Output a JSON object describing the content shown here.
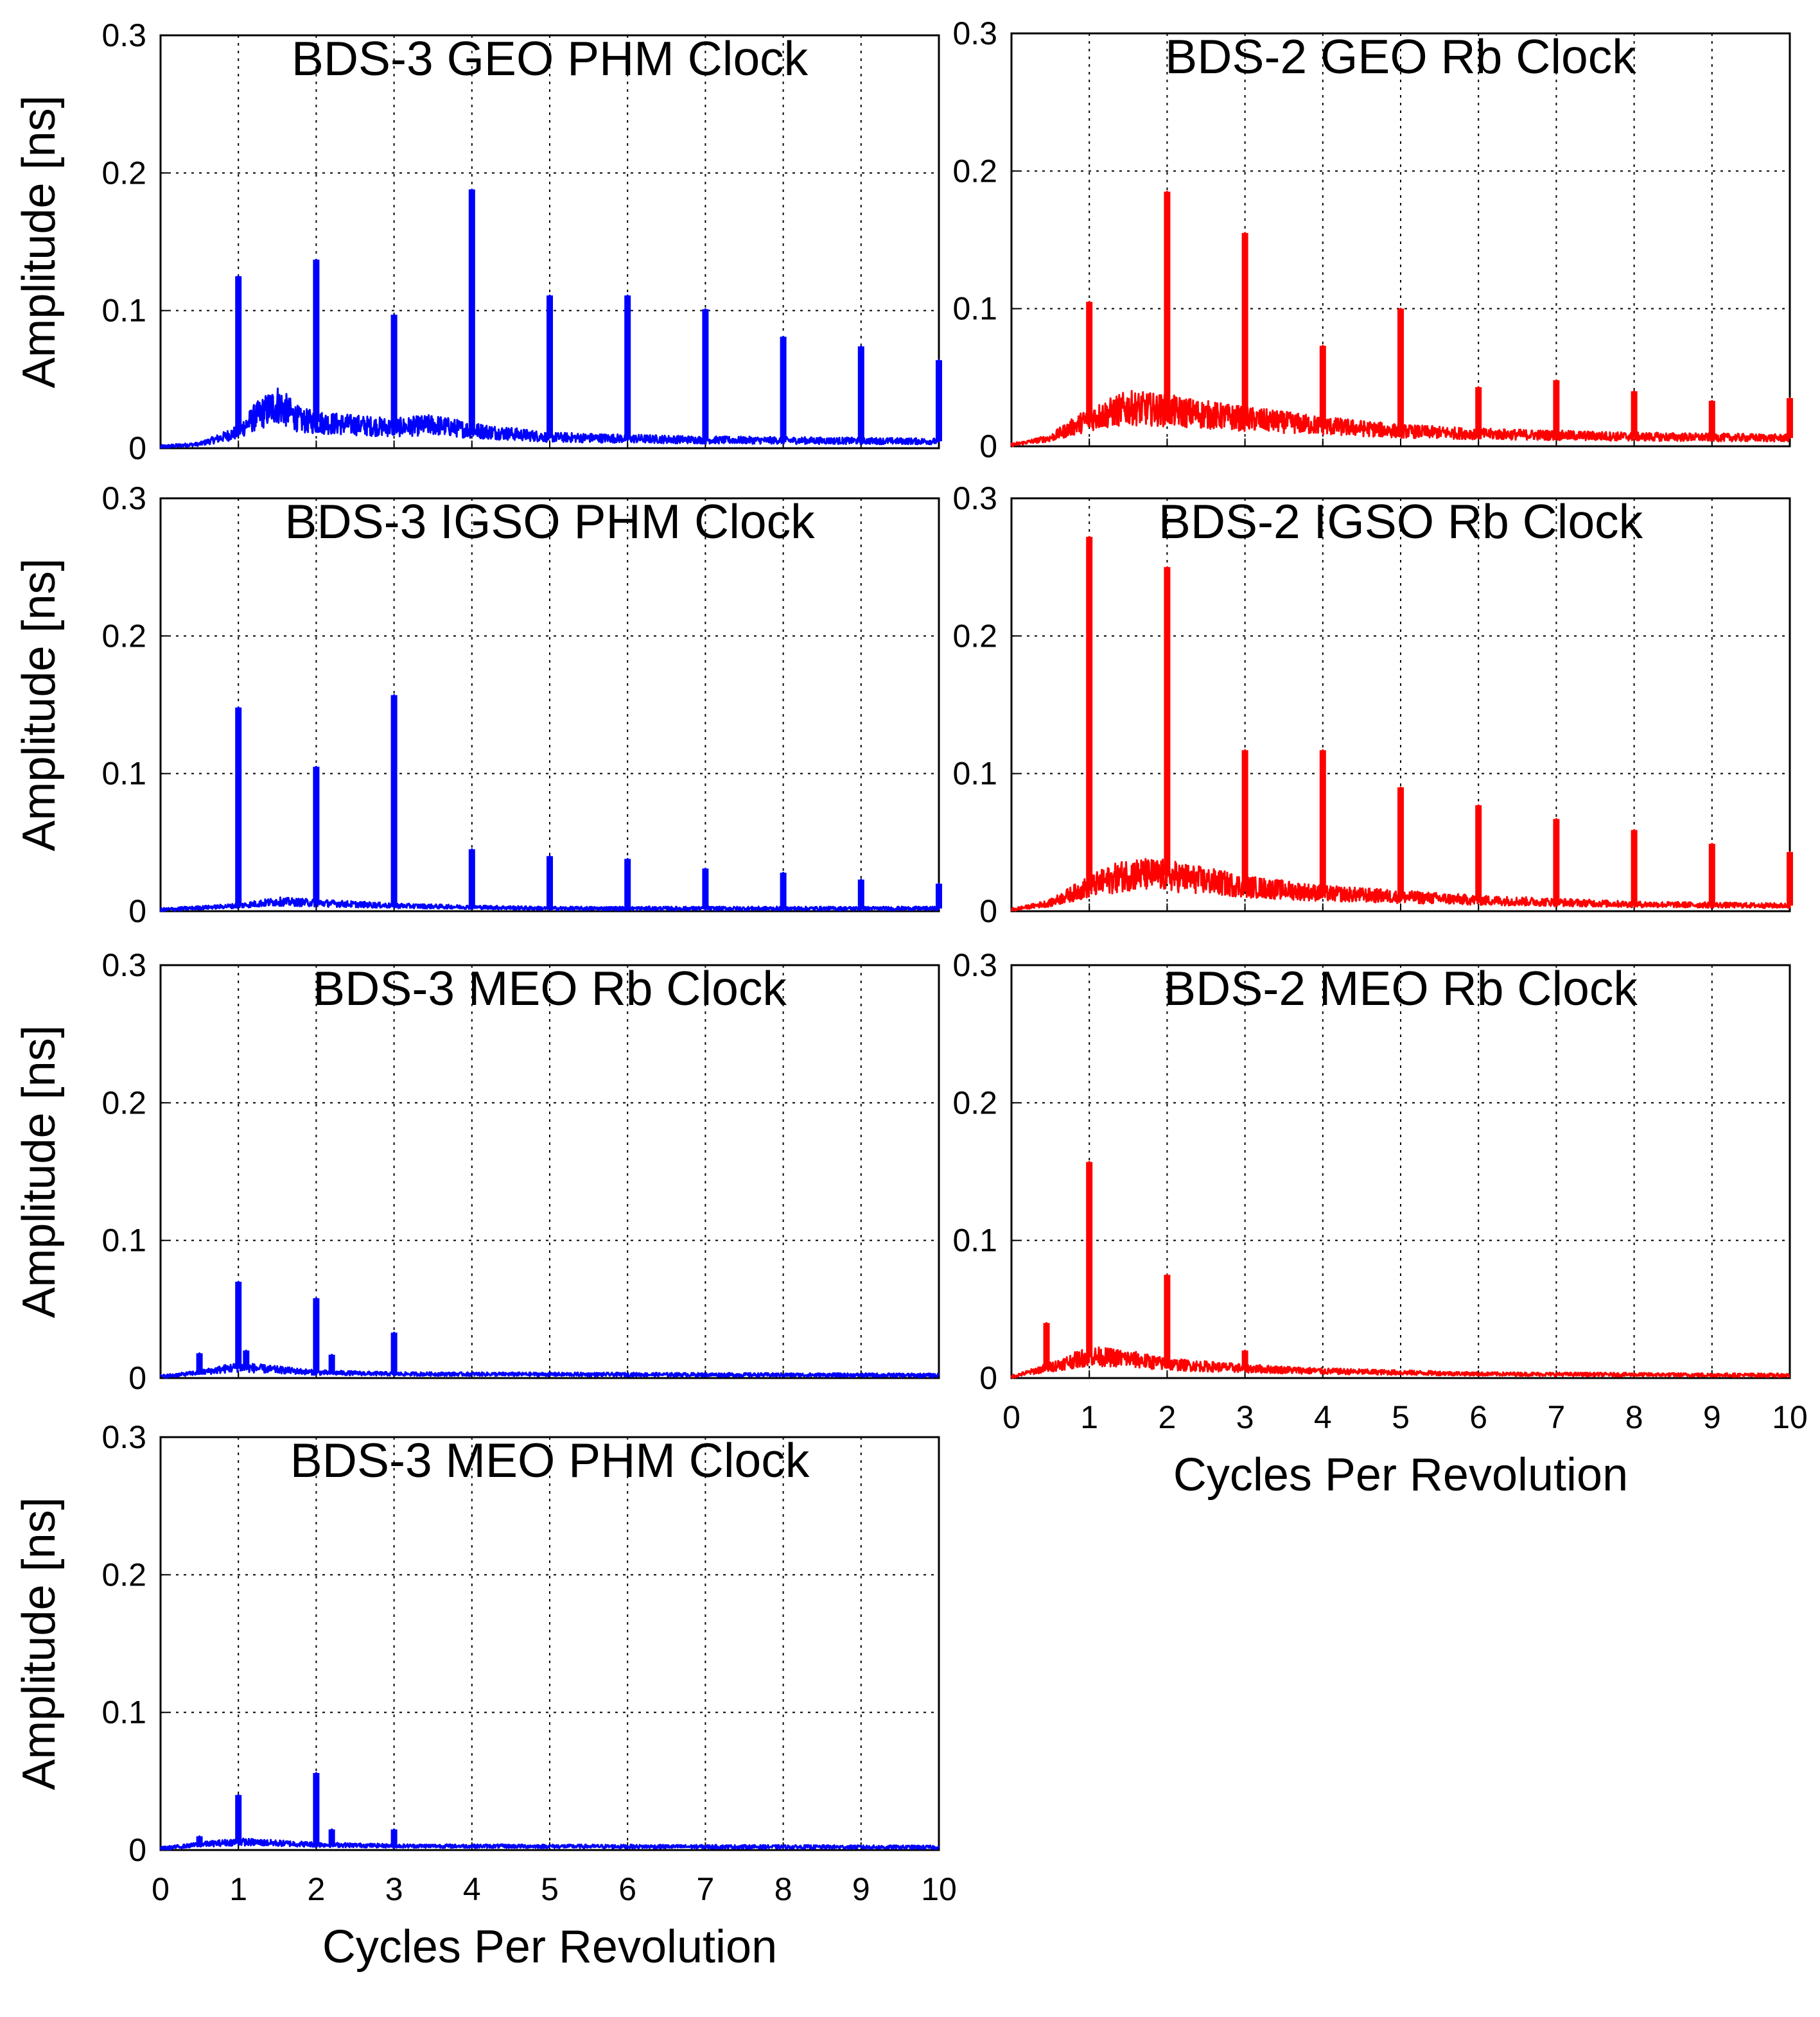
{
  "figure": {
    "x_tick_labels": [
      "0",
      "1",
      "2",
      "3",
      "4",
      "5",
      "6",
      "7",
      "8",
      "9",
      "10"
    ],
    "y_tick_labels": [
      "0",
      "0.1",
      "0.2",
      "0.3"
    ],
    "x_axis_label": "Cycles Per Revolution",
    "y_axis_label": "Amplitude [ns]"
  },
  "chart_data": [
    {
      "type": "line",
      "title": "BDS-3 GEO PHM Clock",
      "xlabel": "Cycles Per Revolution",
      "ylabel": "Amplitude [ns]",
      "xlim": [
        0,
        10
      ],
      "ylim": [
        0,
        0.3
      ],
      "color": "#0000ff",
      "show_xlabel": false,
      "grid": true,
      "peaks": [
        {
          "x": 1,
          "y": 0.125
        },
        {
          "x": 2,
          "y": 0.137
        },
        {
          "x": 3,
          "y": 0.097
        },
        {
          "x": 4,
          "y": 0.188
        },
        {
          "x": 5,
          "y": 0.111
        },
        {
          "x": 6,
          "y": 0.111
        },
        {
          "x": 7,
          "y": 0.101
        },
        {
          "x": 8,
          "y": 0.081
        },
        {
          "x": 9,
          "y": 0.074
        },
        {
          "x": 10,
          "y": 0.064
        }
      ],
      "baseline": [
        {
          "x": 0,
          "y": 0.001
        },
        {
          "x": 0.5,
          "y": 0.003
        },
        {
          "x": 0.8,
          "y": 0.008
        },
        {
          "x": 1.0,
          "y": 0.012
        },
        {
          "x": 1.2,
          "y": 0.022
        },
        {
          "x": 1.5,
          "y": 0.032
        },
        {
          "x": 1.8,
          "y": 0.02
        },
        {
          "x": 2.2,
          "y": 0.018
        },
        {
          "x": 3.0,
          "y": 0.015
        },
        {
          "x": 3.5,
          "y": 0.017
        },
        {
          "x": 4.0,
          "y": 0.013
        },
        {
          "x": 5.0,
          "y": 0.008
        },
        {
          "x": 7.0,
          "y": 0.006
        },
        {
          "x": 10.0,
          "y": 0.005
        }
      ]
    },
    {
      "type": "line",
      "title": "BDS-2 GEO Rb Clock",
      "xlabel": "Cycles Per Revolution",
      "ylabel": "",
      "xlim": [
        0,
        10
      ],
      "ylim": [
        0,
        0.3
      ],
      "color": "#ff0000",
      "show_xlabel": false,
      "grid": true,
      "peaks": [
        {
          "x": 1,
          "y": 0.105
        },
        {
          "x": 2,
          "y": 0.185
        },
        {
          "x": 3,
          "y": 0.155
        },
        {
          "x": 4,
          "y": 0.073
        },
        {
          "x": 5,
          "y": 0.1
        },
        {
          "x": 6,
          "y": 0.043
        },
        {
          "x": 7,
          "y": 0.048
        },
        {
          "x": 8,
          "y": 0.04
        },
        {
          "x": 9,
          "y": 0.033
        },
        {
          "x": 10,
          "y": 0.035
        }
      ],
      "baseline": [
        {
          "x": 0,
          "y": 0.001
        },
        {
          "x": 0.5,
          "y": 0.006
        },
        {
          "x": 1.0,
          "y": 0.02
        },
        {
          "x": 1.5,
          "y": 0.028
        },
        {
          "x": 2.0,
          "y": 0.026
        },
        {
          "x": 3.0,
          "y": 0.02
        },
        {
          "x": 4.0,
          "y": 0.015
        },
        {
          "x": 5.0,
          "y": 0.011
        },
        {
          "x": 6.0,
          "y": 0.009
        },
        {
          "x": 8.0,
          "y": 0.007
        },
        {
          "x": 10.0,
          "y": 0.006
        }
      ]
    },
    {
      "type": "line",
      "title": "BDS-3 IGSO PHM Clock",
      "xlabel": "Cycles Per Revolution",
      "ylabel": "Amplitude [ns]",
      "xlim": [
        0,
        10
      ],
      "ylim": [
        0,
        0.3
      ],
      "color": "#0000ff",
      "show_xlabel": false,
      "grid": true,
      "peaks": [
        {
          "x": 1,
          "y": 0.148
        },
        {
          "x": 2,
          "y": 0.105
        },
        {
          "x": 3,
          "y": 0.157
        },
        {
          "x": 4,
          "y": 0.045
        },
        {
          "x": 5,
          "y": 0.04
        },
        {
          "x": 6,
          "y": 0.038
        },
        {
          "x": 7,
          "y": 0.031
        },
        {
          "x": 8,
          "y": 0.028
        },
        {
          "x": 9,
          "y": 0.023
        },
        {
          "x": 10,
          "y": 0.02
        }
      ],
      "baseline": [
        {
          "x": 0,
          "y": 0.001
        },
        {
          "x": 1.0,
          "y": 0.004
        },
        {
          "x": 1.5,
          "y": 0.007
        },
        {
          "x": 2.0,
          "y": 0.006
        },
        {
          "x": 3.0,
          "y": 0.004
        },
        {
          "x": 5.0,
          "y": 0.002
        },
        {
          "x": 10.0,
          "y": 0.002
        }
      ]
    },
    {
      "type": "line",
      "title": "BDS-2 IGSO Rb Clock",
      "xlabel": "Cycles Per Revolution",
      "ylabel": "",
      "xlim": [
        0,
        10
      ],
      "ylim": [
        0,
        0.3
      ],
      "color": "#ff0000",
      "show_xlabel": false,
      "grid": true,
      "peaks": [
        {
          "x": 1,
          "y": 0.272
        },
        {
          "x": 2,
          "y": 0.25
        },
        {
          "x": 3,
          "y": 0.117
        },
        {
          "x": 4,
          "y": 0.117
        },
        {
          "x": 5,
          "y": 0.09
        },
        {
          "x": 6,
          "y": 0.077
        },
        {
          "x": 7,
          "y": 0.067
        },
        {
          "x": 8,
          "y": 0.059
        },
        {
          "x": 9,
          "y": 0.049
        },
        {
          "x": 10,
          "y": 0.043
        }
      ],
      "baseline": [
        {
          "x": 0,
          "y": 0.001
        },
        {
          "x": 0.5,
          "y": 0.006
        },
        {
          "x": 1.0,
          "y": 0.018
        },
        {
          "x": 1.5,
          "y": 0.027
        },
        {
          "x": 2.0,
          "y": 0.026
        },
        {
          "x": 3.0,
          "y": 0.018
        },
        {
          "x": 4.0,
          "y": 0.013
        },
        {
          "x": 6.0,
          "y": 0.008
        },
        {
          "x": 8.0,
          "y": 0.005
        },
        {
          "x": 10.0,
          "y": 0.004
        }
      ]
    },
    {
      "type": "line",
      "title": "BDS-3 MEO Rb Clock",
      "xlabel": "Cycles Per Revolution",
      "ylabel": "Amplitude [ns]",
      "xlim": [
        0,
        10
      ],
      "ylim": [
        0,
        0.3
      ],
      "color": "#0000ff",
      "show_xlabel": false,
      "grid": true,
      "peaks": [
        {
          "x": 0.5,
          "y": 0.018
        },
        {
          "x": 1,
          "y": 0.07
        },
        {
          "x": 1.1,
          "y": 0.02
        },
        {
          "x": 2,
          "y": 0.058
        },
        {
          "x": 2.2,
          "y": 0.017
        },
        {
          "x": 3,
          "y": 0.033
        }
      ],
      "baseline": [
        {
          "x": 0,
          "y": 0.001
        },
        {
          "x": 0.5,
          "y": 0.004
        },
        {
          "x": 1.0,
          "y": 0.008
        },
        {
          "x": 2.0,
          "y": 0.004
        },
        {
          "x": 3.0,
          "y": 0.003
        },
        {
          "x": 10.0,
          "y": 0.002
        }
      ]
    },
    {
      "type": "line",
      "title": "BDS-2 MEO Rb Clock",
      "xlabel": "Cycles Per Revolution",
      "ylabel": "",
      "xlim": [
        0,
        10
      ],
      "ylim": [
        0,
        0.3
      ],
      "color": "#ff0000",
      "show_xlabel": true,
      "grid": true,
      "peaks": [
        {
          "x": 0.45,
          "y": 0.04
        },
        {
          "x": 1,
          "y": 0.157
        },
        {
          "x": 2,
          "y": 0.075
        },
        {
          "x": 3,
          "y": 0.02
        }
      ],
      "baseline": [
        {
          "x": 0,
          "y": 0.001
        },
        {
          "x": 0.5,
          "y": 0.008
        },
        {
          "x": 1.0,
          "y": 0.016
        },
        {
          "x": 1.5,
          "y": 0.014
        },
        {
          "x": 2.0,
          "y": 0.01
        },
        {
          "x": 3.0,
          "y": 0.007
        },
        {
          "x": 4.0,
          "y": 0.005
        },
        {
          "x": 6.0,
          "y": 0.003
        },
        {
          "x": 10.0,
          "y": 0.002
        }
      ]
    },
    {
      "type": "line",
      "title": "BDS-3 MEO PHM Clock",
      "xlabel": "Cycles Per Revolution",
      "ylabel": "Amplitude [ns]",
      "xlim": [
        0,
        10
      ],
      "ylim": [
        0,
        0.3
      ],
      "color": "#0000ff",
      "show_xlabel": true,
      "grid": true,
      "peaks": [
        {
          "x": 0.5,
          "y": 0.01
        },
        {
          "x": 1,
          "y": 0.04
        },
        {
          "x": 2,
          "y": 0.056
        },
        {
          "x": 2.2,
          "y": 0.015
        },
        {
          "x": 3,
          "y": 0.015
        }
      ],
      "baseline": [
        {
          "x": 0,
          "y": 0.001
        },
        {
          "x": 0.5,
          "y": 0.004
        },
        {
          "x": 1.0,
          "y": 0.006
        },
        {
          "x": 2.0,
          "y": 0.004
        },
        {
          "x": 3.0,
          "y": 0.003
        },
        {
          "x": 10.0,
          "y": 0.002
        }
      ]
    }
  ]
}
